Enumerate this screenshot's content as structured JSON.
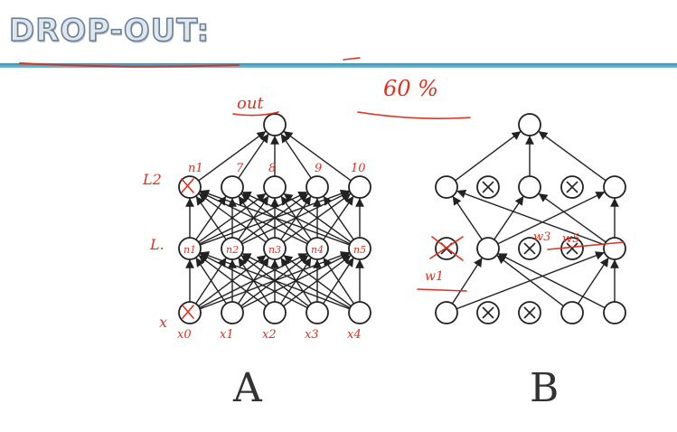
{
  "title": "DROP-OUT:",
  "labels": {
    "a": "A",
    "b": "B"
  },
  "annotations": {
    "out": "out",
    "rate": "60 %",
    "layer2": "L2",
    "layer1": "L.",
    "input": "x",
    "top_node_marks": [
      "n1",
      "7",
      "8",
      "9",
      "10"
    ],
    "hidden_node_marks": [
      "n1",
      "n2",
      "n3",
      "n4",
      "n5"
    ],
    "input_names": [
      "x0",
      "x1",
      "x2",
      "x3",
      "x4"
    ],
    "weights": [
      "w3",
      "w5",
      "w1"
    ]
  },
  "colors": {
    "ink": "#222222",
    "annotation": "#e0301e",
    "rule": "#3b8fae",
    "title_fill": "#dfe6ee"
  }
}
